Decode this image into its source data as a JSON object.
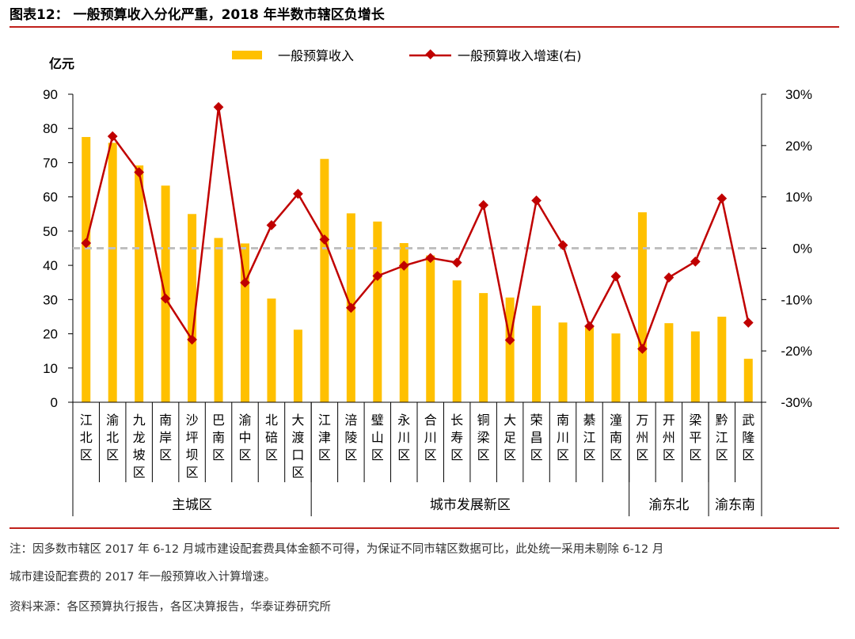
{
  "title": "图表12： 一般预算收入分化严重，2018 年半数市辖区负增长",
  "notes": {
    "line1": "注：因多数市辖区 2017 年 6-12 月城市建设配套费具体金额不可得，为保证不同市辖区数据可比，此处统一采用未剔除 6-12 月",
    "line2": "城市建设配套费的 2017 年一般预算收入计算增速。",
    "source": "资料来源：各区预算执行报告，各区决算报告，华泰证券研究所"
  },
  "colors": {
    "bar": "#FFC000",
    "line": "#C00000",
    "rule": "#C0201B",
    "zero_line": "#BFBFBF"
  },
  "chart_data": {
    "type": "bar",
    "unit_left": "亿元",
    "legend_position": "top",
    "ylim_left": [
      0,
      90
    ],
    "ylim_right": [
      -30,
      30
    ],
    "yticks_left": [
      "0",
      "10",
      "20",
      "30",
      "40",
      "50",
      "60",
      "70",
      "80",
      "90"
    ],
    "yticks_right": [
      "-30%",
      "-20%",
      "-10%",
      "0%",
      "10%",
      "20%",
      "30%"
    ],
    "categories": [
      "江北区",
      "渝北区",
      "九龙坡区",
      "南岸区",
      "沙坪坝区",
      "巴南区",
      "渝中区",
      "北碚区",
      "大渡口区",
      "江津区",
      "涪陵区",
      "璧山区",
      "永川区",
      "合川区",
      "长寿区",
      "铜梁区",
      "大足区",
      "荣昌区",
      "南川区",
      "綦江区",
      "潼南区",
      "万州区",
      "开州区",
      "梁平区",
      "黔江区",
      "武隆区"
    ],
    "groups": [
      {
        "name": "主城区",
        "count": 9
      },
      {
        "name": "城市发展新区",
        "count": 12
      },
      {
        "name": "渝东北",
        "count": 3
      },
      {
        "name": "渝东南",
        "count": 2
      }
    ],
    "series": [
      {
        "name": "一般预算收入",
        "type": "bar",
        "axis": "left",
        "values": [
          77.5,
          75.8,
          69.2,
          63.3,
          55.0,
          48.0,
          46.4,
          30.3,
          21.2,
          71.1,
          55.2,
          52.8,
          46.5,
          42.9,
          35.6,
          31.9,
          30.6,
          28.2,
          23.3,
          22.1,
          20.1,
          55.5,
          23.1,
          20.7,
          25.0,
          12.7
        ]
      },
      {
        "name": "一般预算收入增速(右)",
        "type": "line",
        "axis": "right",
        "values": [
          1.0,
          21.8,
          14.8,
          -9.8,
          -17.8,
          27.5,
          -6.7,
          4.5,
          10.6,
          1.7,
          -11.6,
          -5.4,
          -3.4,
          -1.9,
          -2.8,
          8.4,
          -17.9,
          9.3,
          0.6,
          -15.2,
          -5.5,
          -19.6,
          -5.7,
          -2.6,
          9.7,
          -14.5
        ]
      }
    ]
  }
}
